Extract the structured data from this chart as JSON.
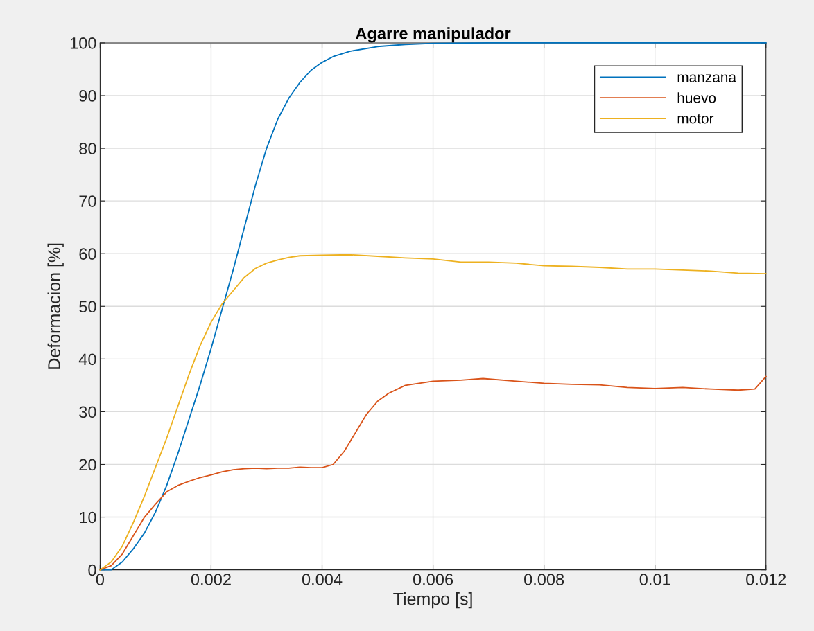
{
  "chart_data": {
    "type": "line",
    "title": "Agarre manipulador",
    "xlabel": "Tiempo [s]",
    "ylabel": "Deformacion [%]",
    "xlim": [
      0,
      0.012
    ],
    "ylim": [
      0,
      100
    ],
    "xticks": [
      0,
      0.002,
      0.004,
      0.006,
      0.008,
      0.01,
      0.012
    ],
    "yticks": [
      0,
      10,
      20,
      30,
      40,
      50,
      60,
      70,
      80,
      90,
      100
    ],
    "grid": true,
    "legend": "top right",
    "marker": "none",
    "line_style": "solid",
    "series": [
      {
        "name": "manzana",
        "color": "#0072bd",
        "x": [
          0,
          0.0002,
          0.0004,
          0.0006,
          0.0008,
          0.001,
          0.0012,
          0.0014,
          0.0016,
          0.0018,
          0.002,
          0.0022,
          0.0024,
          0.0026,
          0.0028,
          0.003,
          0.0032,
          0.0034,
          0.0036,
          0.0038,
          0.004,
          0.0042,
          0.0045,
          0.005,
          0.0055,
          0.006,
          0.007,
          0.012
        ],
        "values": [
          0,
          0,
          1.5,
          4,
          7,
          11,
          16,
          22,
          28.5,
          35,
          42,
          49.5,
          57,
          65,
          73,
          80,
          85.5,
          89.5,
          92.5,
          94.8,
          96.3,
          97.4,
          98.4,
          99.3,
          99.7,
          99.9,
          100,
          100
        ]
      },
      {
        "name": "huevo",
        "color": "#d95319",
        "x": [
          0,
          0.0002,
          0.0004,
          0.0006,
          0.0008,
          0.001,
          0.0012,
          0.0014,
          0.0016,
          0.0018,
          0.002,
          0.0022,
          0.0024,
          0.0026,
          0.0028,
          0.003,
          0.0032,
          0.0034,
          0.0036,
          0.0038,
          0.004,
          0.0042,
          0.0044,
          0.0046,
          0.0048,
          0.005,
          0.0052,
          0.0055,
          0.006,
          0.0065,
          0.0069,
          0.0075,
          0.008,
          0.0085,
          0.009,
          0.0095,
          0.01,
          0.0105,
          0.011,
          0.0115,
          0.0118,
          0.012
        ],
        "values": [
          0,
          0.8,
          3,
          6.5,
          10,
          12.5,
          14.8,
          16,
          16.8,
          17.5,
          18,
          18.6,
          19,
          19.2,
          19.3,
          19.2,
          19.3,
          19.3,
          19.5,
          19.4,
          19.4,
          20,
          22.5,
          26,
          29.5,
          32,
          33.5,
          35,
          35.8,
          36,
          36.3,
          35.8,
          35.4,
          35.2,
          35.1,
          34.6,
          34.4,
          34.6,
          34.3,
          34.1,
          34.3,
          36.7
        ]
      },
      {
        "name": "motor",
        "color": "#edb120",
        "x": [
          0,
          0.0002,
          0.0004,
          0.0006,
          0.0008,
          0.001,
          0.0012,
          0.0014,
          0.0016,
          0.0018,
          0.002,
          0.0022,
          0.0024,
          0.0026,
          0.0028,
          0.003,
          0.0032,
          0.0034,
          0.0036,
          0.004,
          0.0045,
          0.005,
          0.0055,
          0.006,
          0.0065,
          0.007,
          0.0075,
          0.008,
          0.0085,
          0.009,
          0.0095,
          0.01,
          0.0105,
          0.011,
          0.0115,
          0.012
        ],
        "values": [
          0,
          1.5,
          4.5,
          9,
          14,
          19.5,
          25,
          31,
          37,
          42.5,
          47,
          50.5,
          53,
          55.5,
          57.2,
          58.2,
          58.8,
          59.3,
          59.6,
          59.7,
          59.8,
          59.5,
          59.2,
          59,
          58.4,
          58.4,
          58.2,
          57.7,
          57.6,
          57.4,
          57.1,
          57.1,
          56.9,
          56.7,
          56.3,
          56.2
        ]
      }
    ]
  }
}
